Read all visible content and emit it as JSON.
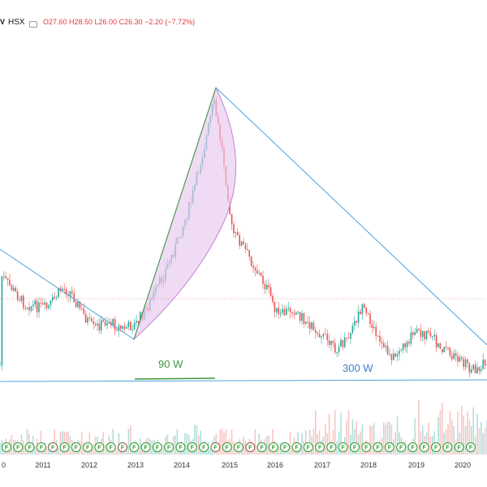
{
  "header": {
    "symbol_fragment": "V",
    "exchange": "HSX",
    "ohlc": "O27.60 H28.50 L26.00 C26.30 −2.20 (−7.72%)"
  },
  "colors": {
    "up": "#26a69a",
    "down": "#ef5350",
    "trendline_blue": "#4aa3df",
    "trendline_green": "#3a9a3a",
    "arc_fill": "#e8c8ee",
    "badge_green": "#2f9a2f",
    "badge_brown": "#8a5a4a"
  },
  "annotations": {
    "green_label": "90 W",
    "blue_label": "300 W"
  },
  "x_axis": {
    "labels": [
      "0",
      "2011",
      "2012",
      "2013",
      "2014",
      "2015",
      "2016",
      "2017",
      "2018",
      "2019",
      "2020"
    ]
  },
  "chart_data": {
    "type": "candlestick",
    "x_range": [
      "2010",
      "2020"
    ],
    "series": [
      {
        "name": "",
        "x": [
          2010.0,
          2010.5,
          2011.0,
          2011.3,
          2011.5,
          2011.8,
          2012.0,
          2012.3,
          2012.6,
          2012.9,
          2013.2,
          2013.5,
          2013.8,
          2014.1,
          2014.4,
          2014.6,
          2014.8,
          2015.0,
          2015.2,
          2015.5,
          2015.8,
          2016.0,
          2016.3,
          2016.6,
          2016.9,
          2017.2,
          2017.5,
          2017.8,
          2018.0,
          2018.2,
          2018.5,
          2018.8,
          2019.0,
          2019.3,
          2019.6,
          2019.9,
          2020.2,
          2020.4
        ],
        "y": [
          340,
          375,
          380,
          355,
          360,
          390,
          405,
          395,
          405,
          400,
          375,
          340,
          300,
          250,
          180,
          125,
          190,
          285,
          300,
          330,
          360,
          390,
          380,
          395,
          410,
          430,
          420,
          380,
          395,
          425,
          440,
          420,
          410,
          415,
          430,
          440,
          455,
          450
        ]
      }
    ],
    "badges": [
      "F",
      "F",
      "F",
      "F",
      "F",
      "F",
      "F",
      "F",
      "F",
      "F",
      "F",
      "F",
      "F",
      "F",
      "F",
      "F",
      "F",
      "F",
      "F",
      "F",
      "F",
      "F",
      "F",
      "F",
      "F",
      "F",
      "F",
      "F",
      "F",
      "F",
      "F",
      "F",
      "F",
      "F",
      "F",
      "F",
      "F",
      "F",
      "F",
      "F",
      "F"
    ]
  }
}
